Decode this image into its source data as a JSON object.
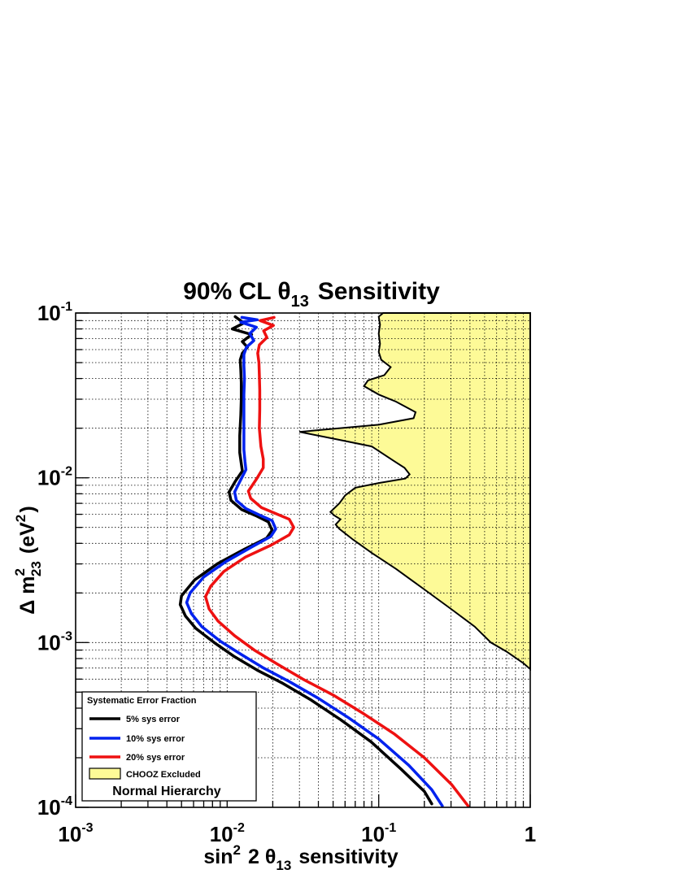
{
  "chart_data": {
    "type": "line",
    "title": "90% CL θ13 Sensitivity",
    "xlabel": "sin2 2 θ13 sensitivity",
    "ylabel": "Δ m223 (eV2)",
    "xscale": "log",
    "yscale": "log",
    "xlim": [
      0.001,
      1
    ],
    "ylim": [
      0.0001,
      0.1
    ],
    "grid": true,
    "x_ticks": [
      {
        "base": "10",
        "exp": "-3"
      },
      {
        "base": "10",
        "exp": "-2"
      },
      {
        "base": "10",
        "exp": "-1"
      },
      {
        "base": "1",
        "exp": ""
      }
    ],
    "y_ticks": [
      {
        "base": "10",
        "exp": "-4"
      },
      {
        "base": "10",
        "exp": "-3"
      },
      {
        "base": "10",
        "exp": "-2"
      },
      {
        "base": "10",
        "exp": "-1"
      }
    ],
    "legend": {
      "placement": "bottom-left",
      "title": "Systematic Error Fraction",
      "footer": "Normal Hierarchy"
    },
    "series": [
      {
        "name": "5% sys error",
        "color": "#000000",
        "points": [
          [
            0.0113,
            0.095
          ],
          [
            0.0129,
            0.087
          ],
          [
            0.0108,
            0.08
          ],
          [
            0.0145,
            0.074
          ],
          [
            0.0126,
            0.067
          ],
          [
            0.0136,
            0.062
          ],
          [
            0.0126,
            0.057
          ],
          [
            0.0122,
            0.052
          ],
          [
            0.0123,
            0.045
          ],
          [
            0.0124,
            0.038
          ],
          [
            0.0124,
            0.03
          ],
          [
            0.0123,
            0.024
          ],
          [
            0.0121,
            0.018
          ],
          [
            0.0121,
            0.0142
          ],
          [
            0.0124,
            0.0122
          ],
          [
            0.0126,
            0.011
          ],
          [
            0.0113,
            0.0095
          ],
          [
            0.0103,
            0.0082
          ],
          [
            0.0106,
            0.0073
          ],
          [
            0.0125,
            0.0064
          ],
          [
            0.0154,
            0.0059
          ],
          [
            0.0187,
            0.0054
          ],
          [
            0.0198,
            0.0048
          ],
          [
            0.0182,
            0.0043
          ],
          [
            0.0131,
            0.0037
          ],
          [
            0.0086,
            0.003
          ],
          [
            0.0061,
            0.0024
          ],
          [
            0.005,
            0.00192
          ],
          [
            0.0049,
            0.0017
          ],
          [
            0.0053,
            0.00145
          ],
          [
            0.0062,
            0.00122
          ],
          [
            0.0082,
            0.001
          ],
          [
            0.0112,
            0.00082
          ],
          [
            0.0158,
            0.00068
          ],
          [
            0.0229,
            0.00057
          ],
          [
            0.0355,
            0.00045
          ],
          [
            0.0562,
            0.00034
          ],
          [
            0.0891,
            0.00025
          ],
          [
            0.141,
            0.00017
          ],
          [
            0.2,
            0.000125
          ],
          [
            0.224,
            0.000105
          ]
        ]
      },
      {
        "name": "10% sys error",
        "color": "#0022ee",
        "points": [
          [
            0.0125,
            0.094
          ],
          [
            0.0158,
            0.091
          ],
          [
            0.0123,
            0.088
          ],
          [
            0.0156,
            0.082
          ],
          [
            0.0141,
            0.075
          ],
          [
            0.015,
            0.068
          ],
          [
            0.0134,
            0.062
          ],
          [
            0.0129,
            0.056
          ],
          [
            0.0129,
            0.048
          ],
          [
            0.013,
            0.04
          ],
          [
            0.0129,
            0.032
          ],
          [
            0.0129,
            0.025
          ],
          [
            0.0129,
            0.019
          ],
          [
            0.0129,
            0.0148
          ],
          [
            0.0131,
            0.0126
          ],
          [
            0.0133,
            0.0112
          ],
          [
            0.0122,
            0.0096
          ],
          [
            0.0112,
            0.0082
          ],
          [
            0.0115,
            0.0073
          ],
          [
            0.0133,
            0.0065
          ],
          [
            0.0166,
            0.0059
          ],
          [
            0.0198,
            0.0055
          ],
          [
            0.0209,
            0.0049
          ],
          [
            0.0194,
            0.0044
          ],
          [
            0.0145,
            0.0038
          ],
          [
            0.0098,
            0.0031
          ],
          [
            0.007,
            0.0025
          ],
          [
            0.0057,
            0.002
          ],
          [
            0.0054,
            0.00175
          ],
          [
            0.0058,
            0.0015
          ],
          [
            0.0068,
            0.00125
          ],
          [
            0.009,
            0.00102
          ],
          [
            0.0123,
            0.00085
          ],
          [
            0.0174,
            0.0007
          ],
          [
            0.0257,
            0.00058
          ],
          [
            0.0398,
            0.00046
          ],
          [
            0.0631,
            0.00035
          ],
          [
            0.1,
            0.00026
          ],
          [
            0.158,
            0.00018
          ],
          [
            0.224,
            0.000128
          ],
          [
            0.263,
            0.000102
          ]
        ]
      },
      {
        "name": "20% sys error",
        "color": "#ee1111",
        "points": [
          [
            0.0204,
            0.094
          ],
          [
            0.0165,
            0.09
          ],
          [
            0.0202,
            0.084
          ],
          [
            0.0174,
            0.078
          ],
          [
            0.0183,
            0.071
          ],
          [
            0.0163,
            0.064
          ],
          [
            0.0159,
            0.057
          ],
          [
            0.0162,
            0.05
          ],
          [
            0.0163,
            0.042
          ],
          [
            0.0164,
            0.034
          ],
          [
            0.0164,
            0.026
          ],
          [
            0.0163,
            0.02
          ],
          [
            0.0167,
            0.0155
          ],
          [
            0.0173,
            0.013
          ],
          [
            0.0173,
            0.0115
          ],
          [
            0.0156,
            0.0098
          ],
          [
            0.0138,
            0.0083
          ],
          [
            0.0143,
            0.0075
          ],
          [
            0.0168,
            0.0066
          ],
          [
            0.0215,
            0.006
          ],
          [
            0.0257,
            0.0056
          ],
          [
            0.0275,
            0.005
          ],
          [
            0.0257,
            0.0045
          ],
          [
            0.0195,
            0.0039
          ],
          [
            0.0132,
            0.0033
          ],
          [
            0.0095,
            0.0027
          ],
          [
            0.0078,
            0.0022
          ],
          [
            0.0072,
            0.0019
          ],
          [
            0.0076,
            0.0016
          ],
          [
            0.0087,
            0.00135
          ],
          [
            0.0112,
            0.0011
          ],
          [
            0.0151,
            0.0009
          ],
          [
            0.0214,
            0.00074
          ],
          [
            0.0316,
            0.0006
          ],
          [
            0.0501,
            0.00048
          ],
          [
            0.0794,
            0.00037
          ],
          [
            0.126,
            0.00028
          ],
          [
            0.2,
            0.0002
          ],
          [
            0.302,
            0.000138
          ],
          [
            0.389,
            0.000102
          ]
        ]
      }
    ],
    "regions": [
      {
        "name": "CHOOZ Excluded",
        "fill": "#fdfa97",
        "boundary": [
          [
            0.107,
            0.1
          ],
          [
            0.1,
            0.095
          ],
          [
            0.102,
            0.085
          ],
          [
            0.1,
            0.075
          ],
          [
            0.102,
            0.065
          ],
          [
            0.1,
            0.058
          ],
          [
            0.104,
            0.052
          ],
          [
            0.12,
            0.047
          ],
          [
            0.109,
            0.042
          ],
          [
            0.085,
            0.039
          ],
          [
            0.08,
            0.036
          ],
          [
            0.1,
            0.032
          ],
          [
            0.13,
            0.029
          ],
          [
            0.175,
            0.025
          ],
          [
            0.17,
            0.023
          ],
          [
            0.1,
            0.021
          ],
          [
            0.03,
            0.019
          ],
          [
            0.055,
            0.017
          ],
          [
            0.09,
            0.0155
          ],
          [
            0.125,
            0.0127
          ],
          [
            0.148,
            0.0115
          ],
          [
            0.16,
            0.0105
          ],
          [
            0.15,
            0.0099
          ],
          [
            0.1,
            0.0093
          ],
          [
            0.07,
            0.0087
          ],
          [
            0.06,
            0.0078
          ],
          [
            0.055,
            0.007
          ],
          [
            0.048,
            0.0062
          ],
          [
            0.051,
            0.0059
          ],
          [
            0.056,
            0.0056
          ],
          [
            0.052,
            0.0052
          ],
          [
            0.055,
            0.0049
          ],
          [
            0.068,
            0.0042
          ],
          [
            0.09,
            0.0035
          ],
          [
            0.13,
            0.0028
          ],
          [
            0.2,
            0.0021
          ],
          [
            0.3,
            0.0016
          ],
          [
            0.43,
            0.00125
          ],
          [
            0.55,
            0.001
          ],
          [
            0.7,
            0.00088
          ],
          [
            0.9,
            0.00075
          ],
          [
            1.0,
            0.00069
          ],
          [
            1.0,
            0.1
          ]
        ]
      }
    ]
  }
}
